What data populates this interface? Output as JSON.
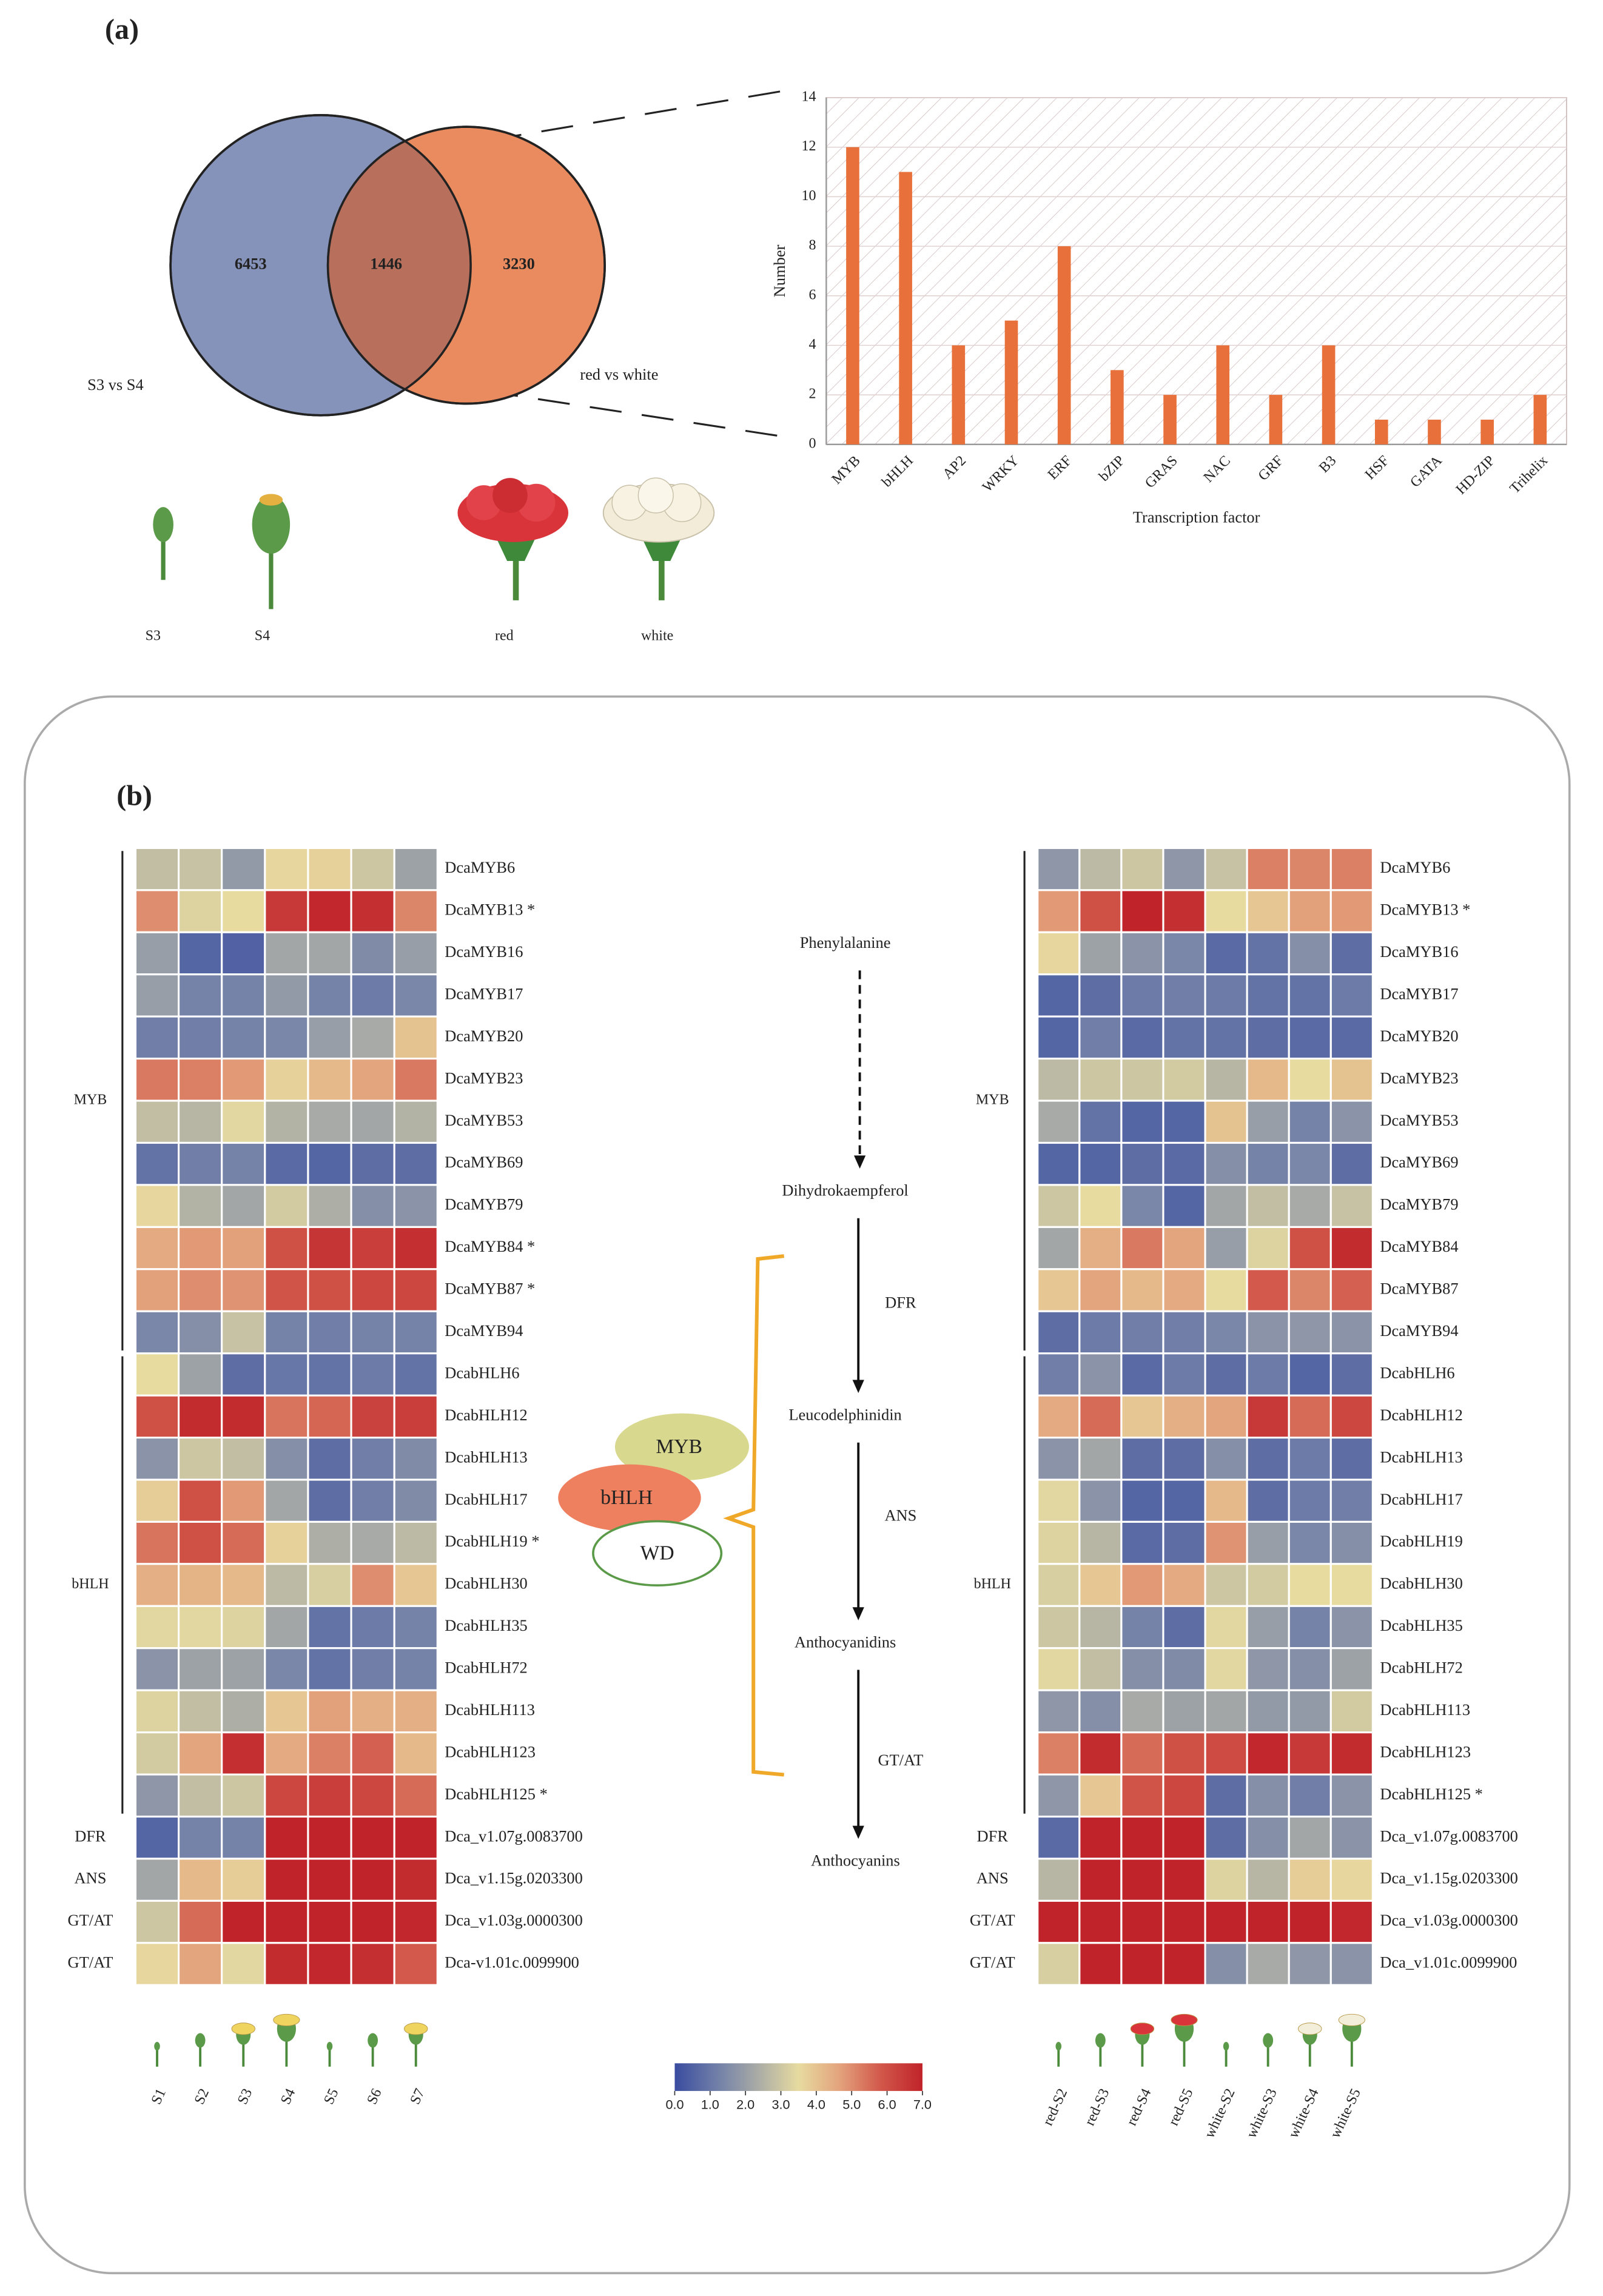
{
  "panel_labels": [
    "(a)",
    "(b)"
  ],
  "chart_data": [
    {
      "type": "venn",
      "sets": [
        {
          "name": "S3 vs S4",
          "color": "#8592b9"
        },
        {
          "name": "red vs white",
          "color": "#e98b5f"
        }
      ],
      "overlap_color": "#b8705d",
      "values": [
        6453,
        1446,
        3230
      ],
      "icon_labels": [
        "S3",
        "S4",
        "red",
        "white"
      ]
    },
    {
      "type": "bar",
      "ylabel": "Number",
      "xlabel": "Transcription factor",
      "categories": [
        "MYB",
        "bHLH",
        "AP2",
        "WRKY",
        "ERF",
        "bZIP",
        "GRAS",
        "NAC",
        "GRF",
        "B3",
        "HSF",
        "GATA",
        "HD-ZIP",
        "Trihelix"
      ],
      "values": [
        12,
        11,
        4,
        5,
        8,
        3,
        2,
        4,
        2,
        4,
        1,
        1,
        1,
        2
      ],
      "color": "#e8703a",
      "ylim": [
        0,
        14
      ],
      "yticks": [
        0,
        2,
        4,
        6,
        8,
        10,
        12,
        14
      ],
      "grid": true
    },
    {
      "type": "heatmap",
      "columns": [
        "S1",
        "S2",
        "S3",
        "S4",
        "S5",
        "S6",
        "S7"
      ],
      "rows": [
        "DcaMYB6",
        "DcaMYB13 *",
        "DcaMYB16",
        "DcaMYB17",
        "DcaMYB20",
        "DcaMYB23",
        "DcaMYB53",
        "DcaMYB69",
        "DcaMYB79",
        "DcaMYB84 *",
        "DcaMYB87 *",
        "DcaMYB94",
        "DcabHLH6",
        "DcabHLH12",
        "DcabHLH13",
        "DcabHLH17",
        "DcabHLH19 *",
        "DcabHLH30",
        "DcabHLH35",
        "DcabHLH72",
        "DcabHLH113",
        "DcabHLH123",
        "DcabHLH125 *",
        "Dca_v1.07g.0083700",
        "Dca_v1.15g.0203300",
        "Dca_v1.03g.0000300",
        "Dca-v1.01c.0099900"
      ],
      "row_groups": [
        {
          "name": "MYB",
          "first": 0,
          "last": 11
        },
        {
          "name": "bHLH",
          "first": 12,
          "last": 22
        }
      ],
      "row_tags": [
        {
          "row": 23,
          "label": "DFR"
        },
        {
          "row": 24,
          "label": "ANS"
        },
        {
          "row": 25,
          "label": "GT/AT"
        },
        {
          "row": 26,
          "label": "GT/AT"
        }
      ],
      "values": [
        [
          2.8,
          2.9,
          1.9,
          3.6,
          3.7,
          3.0,
          2.1
        ],
        [
          5.0,
          3.3,
          3.5,
          6.5,
          6.9,
          6.7,
          5.1
        ],
        [
          2.0,
          0.6,
          0.5,
          2.2,
          2.2,
          1.5,
          2.0
        ],
        [
          2.0,
          1.3,
          1.3,
          1.9,
          1.3,
          1.1,
          1.4
        ],
        [
          1.2,
          1.2,
          1.3,
          1.4,
          2.0,
          2.3,
          4.0
        ],
        [
          5.3,
          5.2,
          4.8,
          3.7,
          4.2,
          4.6,
          5.3
        ],
        [
          2.8,
          2.6,
          3.4,
          2.5,
          2.3,
          2.2,
          2.5
        ],
        [
          0.9,
          1.2,
          1.3,
          0.7,
          0.6,
          0.8,
          0.8
        ],
        [
          3.6,
          2.5,
          2.2,
          3.1,
          2.4,
          1.6,
          1.7
        ],
        [
          4.5,
          4.8,
          4.7,
          6.0,
          6.6,
          6.4,
          6.7
        ],
        [
          4.7,
          5.0,
          4.9,
          5.9,
          6.0,
          6.2,
          6.2
        ],
        [
          1.4,
          1.6,
          2.9,
          1.3,
          1.2,
          1.3,
          1.3
        ],
        [
          3.5,
          2.1,
          0.8,
          1.0,
          0.9,
          1.1,
          0.9
        ],
        [
          6.0,
          6.8,
          6.8,
          5.4,
          5.6,
          6.3,
          6.4
        ],
        [
          1.7,
          3.0,
          2.8,
          1.6,
          0.8,
          1.2,
          1.5
        ],
        [
          3.8,
          6.0,
          4.8,
          2.2,
          0.8,
          1.2,
          1.5
        ],
        [
          5.4,
          6.0,
          5.5,
          3.7,
          2.4,
          2.3,
          2.7
        ],
        [
          4.4,
          4.3,
          4.2,
          2.7,
          3.2,
          5.0,
          3.9
        ],
        [
          3.4,
          3.4,
          3.3,
          2.2,
          0.9,
          1.1,
          1.3
        ],
        [
          1.7,
          2.1,
          2.1,
          1.4,
          0.9,
          1.2,
          1.3
        ],
        [
          3.3,
          2.8,
          2.4,
          3.9,
          4.7,
          4.4,
          4.4
        ],
        [
          3.1,
          4.6,
          6.7,
          4.5,
          5.2,
          5.7,
          4.2
        ],
        [
          1.8,
          2.8,
          3.0,
          6.2,
          6.4,
          6.2,
          5.5
        ],
        [
          0.6,
          1.3,
          1.3,
          7.0,
          7.0,
          7.0,
          7.0
        ],
        [
          2.2,
          4.2,
          3.8,
          7.0,
          7.0,
          7.0,
          6.8
        ],
        [
          3.0,
          5.5,
          7.0,
          7.0,
          7.0,
          7.0,
          6.9
        ],
        [
          3.6,
          4.6,
          3.4,
          6.8,
          6.9,
          6.7,
          5.8
        ]
      ]
    },
    {
      "type": "heatmap",
      "columns": [
        "red-S2",
        "red-S3",
        "red-S4",
        "red-S5",
        "white-S2",
        "white-S3",
        "white-S4",
        "white-S5"
      ],
      "rows": [
        "DcaMYB6",
        "DcaMYB13 *",
        "DcaMYB16",
        "DcaMYB17",
        "DcaMYB20",
        "DcaMYB23",
        "DcaMYB53",
        "DcaMYB69",
        "DcaMYB79",
        "DcaMYB84",
        "DcaMYB87",
        "DcaMYB94",
        "DcabHLH6",
        "DcabHLH12",
        "DcabHLH13",
        "DcabHLH17",
        "DcabHLH19",
        "DcabHLH30",
        "DcabHLH35",
        "DcabHLH72",
        "DcabHLH113",
        "DcabHLH123",
        "DcabHLH125 *",
        "Dca_v1.07g.0083700",
        "Dca_v1.15g.0203300",
        "Dca_v1.03g.0000300",
        "Dca_v1.01c.0099900"
      ],
      "row_groups": [
        {
          "name": "MYB",
          "first": 0,
          "last": 11
        },
        {
          "name": "bHLH",
          "first": 12,
          "last": 22
        }
      ],
      "row_tags": [
        {
          "row": 23,
          "label": "DFR"
        },
        {
          "row": 24,
          "label": "ANS"
        },
        {
          "row": 25,
          "label": "GT/AT"
        },
        {
          "row": 26,
          "label": "GT/AT"
        }
      ],
      "values": [
        [
          1.8,
          2.7,
          3.0,
          1.8,
          2.9,
          5.2,
          5.1,
          5.2
        ],
        [
          4.8,
          6.0,
          7.0,
          6.7,
          3.5,
          3.9,
          4.7,
          4.8
        ],
        [
          3.6,
          2.1,
          1.7,
          1.4,
          0.7,
          0.9,
          1.6,
          0.8
        ],
        [
          0.6,
          0.8,
          1.1,
          1.2,
          1.1,
          0.9,
          0.9,
          1.1
        ],
        [
          0.6,
          1.2,
          0.7,
          0.9,
          0.9,
          0.8,
          0.7,
          0.7
        ],
        [
          2.7,
          3.0,
          3.0,
          3.1,
          2.6,
          4.2,
          3.5,
          4.0
        ],
        [
          2.3,
          0.9,
          0.6,
          0.6,
          4.0,
          2.0,
          1.3,
          1.7
        ],
        [
          0.6,
          0.6,
          0.8,
          0.7,
          1.6,
          1.3,
          1.4,
          0.8
        ],
        [
          3.0,
          3.5,
          1.4,
          0.6,
          2.2,
          2.8,
          2.3,
          2.9
        ],
        [
          2.2,
          4.4,
          5.3,
          4.6,
          2.0,
          3.3,
          6.0,
          6.8
        ],
        [
          3.9,
          4.6,
          4.2,
          4.5,
          3.5,
          5.8,
          5.1,
          5.7
        ],
        [
          0.8,
          1.1,
          1.2,
          1.2,
          1.4,
          1.7,
          1.8,
          1.7
        ],
        [
          1.2,
          1.7,
          0.7,
          1.1,
          0.8,
          1.1,
          0.6,
          0.8
        ],
        [
          4.5,
          5.5,
          3.9,
          4.4,
          4.6,
          6.5,
          5.5,
          6.2
        ],
        [
          1.7,
          2.2,
          0.8,
          0.8,
          1.6,
          0.8,
          1.1,
          0.8
        ],
        [
          3.4,
          1.7,
          0.6,
          0.6,
          4.2,
          0.8,
          1.1,
          1.2
        ],
        [
          3.3,
          2.6,
          0.7,
          0.8,
          4.9,
          2.0,
          1.4,
          1.6
        ],
        [
          3.2,
          3.9,
          4.8,
          4.5,
          3.0,
          3.1,
          3.5,
          3.5
        ],
        [
          3.0,
          2.6,
          1.3,
          0.8,
          3.4,
          2.0,
          1.3,
          1.7
        ],
        [
          3.4,
          2.8,
          1.6,
          1.5,
          3.4,
          1.8,
          1.6,
          2.1
        ],
        [
          1.8,
          1.6,
          2.3,
          2.1,
          2.2,
          1.9,
          1.9,
          3.1
        ],
        [
          5.2,
          6.8,
          5.5,
          6.0,
          6.1,
          6.9,
          6.5,
          6.8
        ],
        [
          1.8,
          3.9,
          5.9,
          6.2,
          0.8,
          1.6,
          1.2,
          1.7
        ],
        [
          0.7,
          7.0,
          7.0,
          7.0,
          0.8,
          1.6,
          2.2,
          1.7
        ],
        [
          2.6,
          7.0,
          7.0,
          7.0,
          3.3,
          2.6,
          3.8,
          3.6
        ],
        [
          7.0,
          7.0,
          7.0,
          7.0,
          7.0,
          7.0,
          7.0,
          6.9
        ],
        [
          3.2,
          7.0,
          7.0,
          7.0,
          1.6,
          2.3,
          1.8,
          1.7
        ]
      ]
    }
  ],
  "colorbar": {
    "lim": [
      0,
      7
    ],
    "ticks": [
      {
        "value": 0,
        "label": "0.0"
      },
      {
        "value": 1,
        "label": "1.0"
      },
      {
        "value": 2,
        "label": "2.0"
      },
      {
        "value": 3,
        "label": "3.0"
      },
      {
        "value": 4,
        "label": "4.0"
      },
      {
        "value": 5,
        "label": "5.0"
      },
      {
        "value": 6,
        "label": "6.0"
      },
      {
        "value": 7,
        "label": "7.0"
      }
    ],
    "colors": [
      "#3a4c9f",
      "#6f7ea8",
      "#a9aba6",
      "#e7dba0",
      "#e3a27c",
      "#d1574a",
      "#c0232a"
    ]
  },
  "pathway": {
    "nodes": [
      "Phenylalanine",
      "Dihydrokaempferol",
      "Leucodelphinidin",
      "Anthocyanidins",
      "Anthocyanins"
    ],
    "enzymes": [
      "DFR",
      "ANS",
      "GT/AT"
    ],
    "complex": [
      "MYB",
      "bHLH",
      "WD"
    ]
  }
}
